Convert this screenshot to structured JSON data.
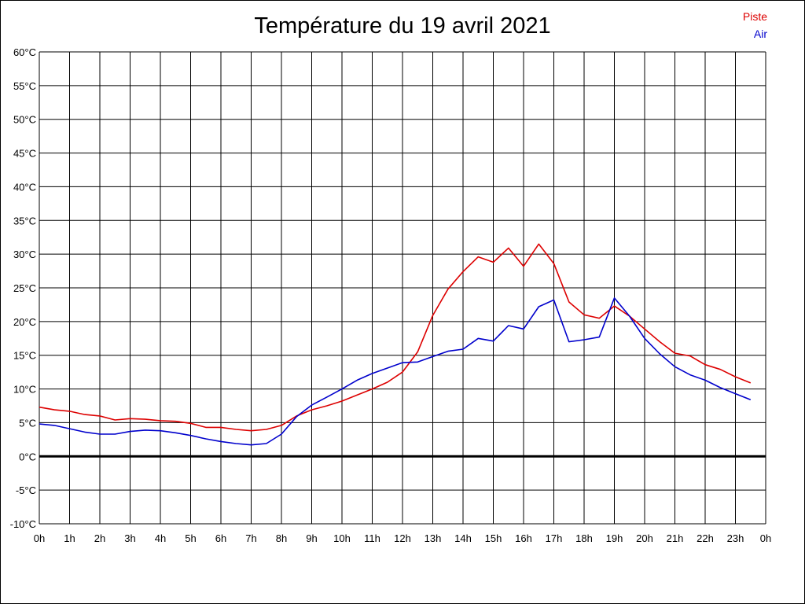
{
  "chart_data": {
    "type": "line",
    "title": "Température du 19 avril 2021",
    "xlabel": "",
    "ylabel": "",
    "ylim": [
      -10,
      60
    ],
    "xlim": [
      0,
      24
    ],
    "grid": true,
    "legend_position": "top-right",
    "y_ticks": [
      "60°C",
      "55°C",
      "50°C",
      "45°C",
      "40°C",
      "35°C",
      "30°C",
      "25°C",
      "20°C",
      "15°C",
      "10°C",
      "5°C",
      "0°C",
      "-5°C",
      "-10°C"
    ],
    "x_ticks": [
      "0h",
      "1h",
      "2h",
      "3h",
      "4h",
      "5h",
      "6h",
      "7h",
      "8h",
      "9h",
      "10h",
      "11h",
      "12h",
      "13h",
      "14h",
      "15h",
      "16h",
      "17h",
      "18h",
      "19h",
      "20h",
      "21h",
      "22h",
      "23h",
      "0h"
    ],
    "series": [
      {
        "name": "Piste",
        "color": "#dd0000",
        "x": [
          0,
          0.5,
          1,
          1.5,
          2,
          2.5,
          3,
          3.5,
          4,
          4.5,
          5,
          5.5,
          6,
          6.5,
          7,
          7.5,
          8,
          8.5,
          9,
          9.5,
          10,
          10.5,
          11,
          11.5,
          12,
          12.5,
          13,
          13.5,
          14,
          14.5,
          15,
          15.5,
          16,
          16.5,
          17,
          17.5,
          18,
          18.5,
          19,
          19.5,
          20,
          20.5,
          21,
          21.5,
          22,
          22.5,
          23,
          23.5
        ],
        "values": [
          7.3,
          6.9,
          6.7,
          6.2,
          6.0,
          5.4,
          5.6,
          5.5,
          5.3,
          5.2,
          4.9,
          4.3,
          4.3,
          4.0,
          3.8,
          4.0,
          4.6,
          6.0,
          6.9,
          7.5,
          8.2,
          9.1,
          10.0,
          11.0,
          12.5,
          15.5,
          20.9,
          24.8,
          27.4,
          29.6,
          28.8,
          30.9,
          28.2,
          31.5,
          28.6,
          22.9,
          21.0,
          20.5,
          22.3,
          20.8,
          18.9,
          17.0,
          15.3,
          14.9,
          13.6,
          12.9,
          11.8,
          10.9
        ]
      },
      {
        "name": "Air",
        "color": "#0000cc",
        "x": [
          0,
          0.5,
          1,
          1.5,
          2,
          2.5,
          3,
          3.5,
          4,
          4.5,
          5,
          5.5,
          6,
          6.5,
          7,
          7.5,
          8,
          8.5,
          9,
          9.5,
          10,
          10.5,
          11,
          11.5,
          12,
          12.5,
          13,
          13.5,
          14,
          14.5,
          15,
          15.5,
          16,
          16.5,
          17,
          17.5,
          18,
          18.5,
          19,
          19.5,
          20,
          20.5,
          21,
          21.5,
          22,
          22.5,
          23,
          23.5
        ],
        "values": [
          4.8,
          4.6,
          4.1,
          3.6,
          3.3,
          3.3,
          3.7,
          3.9,
          3.8,
          3.5,
          3.1,
          2.6,
          2.2,
          1.9,
          1.7,
          1.9,
          3.3,
          5.9,
          7.6,
          8.8,
          10.0,
          11.3,
          12.3,
          13.1,
          13.9,
          14.0,
          14.8,
          15.6,
          15.9,
          17.5,
          17.1,
          19.4,
          18.9,
          22.2,
          23.2,
          17.0,
          17.3,
          17.7,
          23.5,
          20.8,
          17.5,
          15.2,
          13.3,
          12.1,
          11.3,
          10.2,
          9.3,
          8.4
        ]
      }
    ],
    "zero_line": 0
  }
}
